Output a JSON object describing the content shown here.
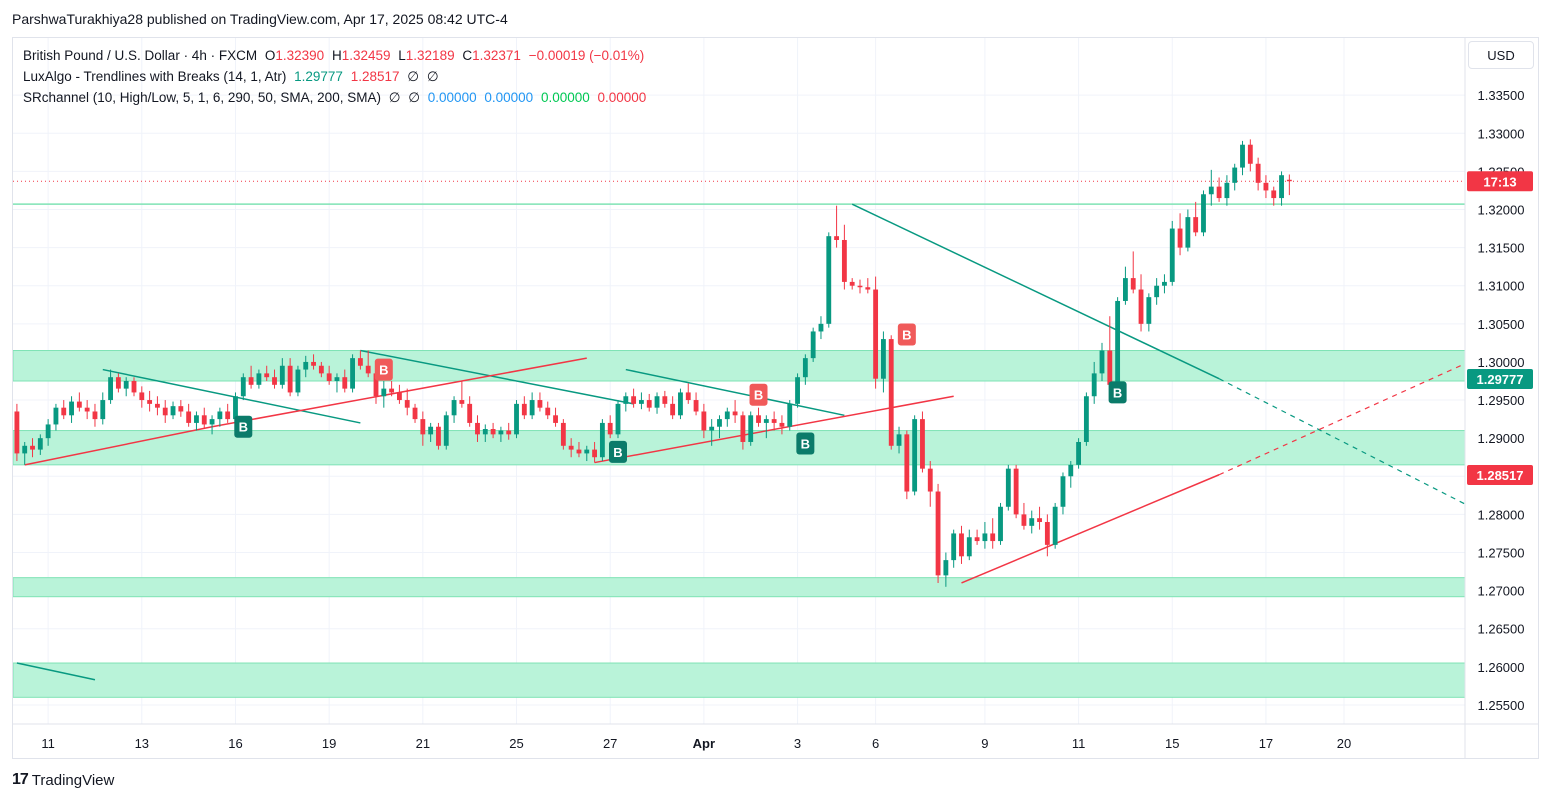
{
  "header": {
    "publisher": "ParshwaTurakhiya28 published on TradingView.com, Apr 17, 2025 08:42 UTC-4"
  },
  "legend": {
    "symbol": {
      "name": "British Pound / U.S. Dollar · 4h · FXCM",
      "o_label": "O",
      "o_value": "1.32390",
      "h_label": "H",
      "h_value": "1.32459",
      "l_label": "L",
      "l_value": "1.32189",
      "c_label": "C",
      "c_value": "1.32371",
      "change": "−0.00019 (−0.01%)"
    },
    "luxalgo": {
      "name": "LuxAlgo - Trendlines with Breaks (14, 1, Atr)",
      "v1": "1.29777",
      "v2": "1.28517",
      "v3": "∅",
      "v4": "∅"
    },
    "srchannel": {
      "name": "SRchannel (10, High/Low, 5, 1, 6, 290, 50, SMA, 200, SMA)",
      "v1": "∅",
      "v2": "∅",
      "v3": "0.00000",
      "v4": "0.00000",
      "v5": "0.00000",
      "v6": "0.00000"
    }
  },
  "currency_button": "USD",
  "footer": {
    "logo_mark": "17",
    "logo_text": "TradingView"
  },
  "colors": {
    "up": "#089981",
    "down": "#f23645",
    "zone": "#b9f3d9",
    "zone_border": "#7fe3b5",
    "trend_down": "#089981",
    "trend_up": "#f23645",
    "grid": "#f0f3fa"
  },
  "chart_data": {
    "type": "candlestick",
    "title": "British Pound / U.S. Dollar · 4h · FXCM",
    "y_axis": {
      "min": 1.2525,
      "max": 1.3425,
      "ticks": [
        "1.25500",
        "1.26000",
        "1.26500",
        "1.27000",
        "1.27500",
        "1.28000",
        "1.28500",
        "1.29000",
        "1.29500",
        "1.30000",
        "1.30500",
        "1.31000",
        "1.31500",
        "1.32000",
        "1.32500",
        "1.33000",
        "1.33500"
      ]
    },
    "x_axis": {
      "labels": [
        {
          "text": "11",
          "index": 4
        },
        {
          "text": "13",
          "index": 16
        },
        {
          "text": "16",
          "index": 28
        },
        {
          "text": "19",
          "index": 40
        },
        {
          "text": "21",
          "index": 52
        },
        {
          "text": "25",
          "index": 64
        },
        {
          "text": "27",
          "index": 76
        },
        {
          "text": "Apr",
          "index": 88
        },
        {
          "text": "3",
          "index": 100
        },
        {
          "text": "6",
          "index": 110
        },
        {
          "text": "9",
          "index": 124
        },
        {
          "text": "11",
          "index": 136
        },
        {
          "text": "15",
          "index": 148
        },
        {
          "text": "17",
          "index": 160
        },
        {
          "text": "20",
          "index": 170
        }
      ],
      "bold_labels": [
        "Apr"
      ],
      "total_slots": 186
    },
    "price_labels": [
      {
        "text": "17:13",
        "value": 1.3237,
        "color": "#f23645"
      },
      {
        "text": "1.29777",
        "value": 1.29777,
        "color": "#089981"
      },
      {
        "text": "1.28517",
        "value": 1.28517,
        "color": "#f23645"
      }
    ],
    "current_price": 1.3237,
    "sr_zones": [
      [
        1.2975,
        1.3015
      ],
      [
        1.2865,
        1.291
      ],
      [
        1.2692,
        1.2717
      ],
      [
        1.256,
        1.2605
      ]
    ],
    "horizontal_line": 1.3207,
    "candles": [
      [
        1.2935,
        1.2945,
        1.287,
        1.288
      ],
      [
        1.288,
        1.2895,
        1.2865,
        1.289
      ],
      [
        1.289,
        1.29,
        1.2875,
        1.2885
      ],
      [
        1.2885,
        1.2905,
        1.2878,
        1.29
      ],
      [
        1.29,
        1.2925,
        1.289,
        1.2918
      ],
      [
        1.2918,
        1.2945,
        1.291,
        1.294
      ],
      [
        1.294,
        1.295,
        1.2925,
        1.293
      ],
      [
        1.293,
        1.2955,
        1.292,
        1.2948
      ],
      [
        1.2948,
        1.296,
        1.2935,
        1.294
      ],
      [
        1.294,
        1.295,
        1.2925,
        1.2935
      ],
      [
        1.2935,
        1.2945,
        1.2915,
        1.2925
      ],
      [
        1.2925,
        1.296,
        1.2918,
        1.295
      ],
      [
        1.295,
        1.299,
        1.2945,
        1.298
      ],
      [
        1.298,
        1.2985,
        1.296,
        1.2965
      ],
      [
        1.2965,
        1.298,
        1.2955,
        1.2975
      ],
      [
        1.2975,
        1.298,
        1.2955,
        1.296
      ],
      [
        1.296,
        1.2968,
        1.294,
        1.295
      ],
      [
        1.295,
        1.2962,
        1.2935,
        1.2945
      ],
      [
        1.2945,
        1.2955,
        1.293,
        1.294
      ],
      [
        1.294,
        1.295,
        1.292,
        1.293
      ],
      [
        1.293,
        1.2948,
        1.2925,
        1.2942
      ],
      [
        1.2942,
        1.295,
        1.2928,
        1.2935
      ],
      [
        1.2935,
        1.2945,
        1.2915,
        1.292
      ],
      [
        1.292,
        1.2935,
        1.291,
        1.293
      ],
      [
        1.293,
        1.294,
        1.2912,
        1.2918
      ],
      [
        1.2918,
        1.293,
        1.2905,
        1.2925
      ],
      [
        1.2925,
        1.294,
        1.2915,
        1.2935
      ],
      [
        1.2935,
        1.2945,
        1.292,
        1.2925
      ],
      [
        1.2925,
        1.296,
        1.292,
        1.2955
      ],
      [
        1.2955,
        1.2985,
        1.295,
        1.298
      ],
      [
        1.298,
        1.2995,
        1.2965,
        1.297
      ],
      [
        1.297,
        1.299,
        1.2965,
        1.2985
      ],
      [
        1.2985,
        1.2995,
        1.2975,
        1.298
      ],
      [
        1.298,
        1.299,
        1.2965,
        1.297
      ],
      [
        1.297,
        1.3005,
        1.2965,
        1.2995
      ],
      [
        1.2995,
        1.3005,
        1.2955,
        1.296
      ],
      [
        1.296,
        1.2995,
        1.2955,
        1.299
      ],
      [
        1.299,
        1.3008,
        1.298,
        1.3
      ],
      [
        1.3,
        1.301,
        1.299,
        1.2995
      ],
      [
        1.2995,
        1.3,
        1.298,
        1.2985
      ],
      [
        1.2985,
        1.2995,
        1.297,
        1.2975
      ],
      [
        1.2975,
        1.2985,
        1.296,
        1.298
      ],
      [
        1.298,
        1.299,
        1.296,
        1.2965
      ],
      [
        1.2965,
        1.301,
        1.296,
        1.3005
      ],
      [
        1.3005,
        1.3015,
        1.299,
        1.2995
      ],
      [
        1.2995,
        1.3015,
        1.298,
        1.2985
      ],
      [
        1.2985,
        1.299,
        1.2945,
        1.2955
      ],
      [
        1.2955,
        1.2975,
        1.294,
        1.2965
      ],
      [
        1.2965,
        1.2975,
        1.2955,
        1.296
      ],
      [
        1.296,
        1.297,
        1.2945,
        1.295
      ],
      [
        1.295,
        1.2965,
        1.293,
        1.294
      ],
      [
        1.294,
        1.2945,
        1.292,
        1.2925
      ],
      [
        1.2925,
        1.2935,
        1.289,
        1.2905
      ],
      [
        1.2905,
        1.292,
        1.2895,
        1.2915
      ],
      [
        1.2915,
        1.292,
        1.2885,
        1.289
      ],
      [
        1.289,
        1.2935,
        1.2885,
        1.293
      ],
      [
        1.293,
        1.2955,
        1.292,
        1.295
      ],
      [
        1.295,
        1.2975,
        1.294,
        1.2945
      ],
      [
        1.2945,
        1.2955,
        1.2915,
        1.292
      ],
      [
        1.292,
        1.293,
        1.2895,
        1.2905
      ],
      [
        1.2905,
        1.2918,
        1.2895,
        1.2912
      ],
      [
        1.2912,
        1.292,
        1.29,
        1.2905
      ],
      [
        1.2905,
        1.2915,
        1.2895,
        1.291
      ],
      [
        1.291,
        1.292,
        1.2898,
        1.2905
      ],
      [
        1.2905,
        1.295,
        1.29,
        1.2945
      ],
      [
        1.2945,
        1.2955,
        1.2925,
        1.293
      ],
      [
        1.293,
        1.296,
        1.2925,
        1.295
      ],
      [
        1.295,
        1.296,
        1.2935,
        1.294
      ],
      [
        1.294,
        1.2948,
        1.2925,
        1.293
      ],
      [
        1.293,
        1.294,
        1.2915,
        1.292
      ],
      [
        1.292,
        1.2925,
        1.2885,
        1.289
      ],
      [
        1.289,
        1.29,
        1.2875,
        1.2885
      ],
      [
        1.2885,
        1.2895,
        1.2875,
        1.288
      ],
      [
        1.288,
        1.289,
        1.287,
        1.2885
      ],
      [
        1.2885,
        1.2895,
        1.2868,
        1.2875
      ],
      [
        1.2875,
        1.2925,
        1.287,
        1.292
      ],
      [
        1.292,
        1.293,
        1.29,
        1.2905
      ],
      [
        1.2905,
        1.295,
        1.29,
        1.2945
      ],
      [
        1.2945,
        1.296,
        1.2935,
        1.2955
      ],
      [
        1.2955,
        1.2965,
        1.294,
        1.2945
      ],
      [
        1.2945,
        1.296,
        1.2938,
        1.295
      ],
      [
        1.295,
        1.2958,
        1.2935,
        1.294
      ],
      [
        1.294,
        1.296,
        1.2932,
        1.2955
      ],
      [
        1.2955,
        1.2962,
        1.294,
        1.2945
      ],
      [
        1.2945,
        1.2955,
        1.2925,
        1.293
      ],
      [
        1.293,
        1.2965,
        1.2925,
        1.296
      ],
      [
        1.296,
        1.2972,
        1.2945,
        1.295
      ],
      [
        1.295,
        1.296,
        1.293,
        1.2935
      ],
      [
        1.2935,
        1.2945,
        1.29,
        1.291
      ],
      [
        1.291,
        1.2925,
        1.289,
        1.2915
      ],
      [
        1.2915,
        1.293,
        1.29,
        1.2925
      ],
      [
        1.2925,
        1.294,
        1.2915,
        1.2935
      ],
      [
        1.2935,
        1.295,
        1.292,
        1.293
      ],
      [
        1.293,
        1.2935,
        1.2885,
        1.2895
      ],
      [
        1.2895,
        1.2935,
        1.289,
        1.293
      ],
      [
        1.293,
        1.294,
        1.2915,
        1.292
      ],
      [
        1.292,
        1.293,
        1.29,
        1.2925
      ],
      [
        1.2925,
        1.2935,
        1.291,
        1.292
      ],
      [
        1.292,
        1.293,
        1.2905,
        1.2915
      ],
      [
        1.2915,
        1.295,
        1.291,
        1.2945
      ],
      [
        1.2945,
        1.2985,
        1.294,
        1.298
      ],
      [
        1.298,
        1.301,
        1.297,
        1.3005
      ],
      [
        1.3005,
        1.3045,
        1.3,
        1.304
      ],
      [
        1.304,
        1.306,
        1.303,
        1.305
      ],
      [
        1.305,
        1.317,
        1.3045,
        1.3165
      ],
      [
        1.3165,
        1.3205,
        1.315,
        1.316
      ],
      [
        1.316,
        1.318,
        1.3095,
        1.3105
      ],
      [
        1.3105,
        1.311,
        1.3095,
        1.31
      ],
      [
        1.31,
        1.3108,
        1.309,
        1.3098
      ],
      [
        1.3098,
        1.311,
        1.309,
        1.3095
      ],
      [
        1.3095,
        1.3112,
        1.2965,
        1.2978
      ],
      [
        1.2978,
        1.304,
        1.296,
        1.303
      ],
      [
        1.303,
        1.3035,
        1.2885,
        1.289
      ],
      [
        1.289,
        1.2915,
        1.288,
        1.2905
      ],
      [
        1.2905,
        1.291,
        1.282,
        1.283
      ],
      [
        1.283,
        1.293,
        1.2825,
        1.2925
      ],
      [
        1.2925,
        1.2935,
        1.2855,
        1.286
      ],
      [
        1.286,
        1.287,
        1.281,
        1.283
      ],
      [
        1.283,
        1.284,
        1.271,
        1.272
      ],
      [
        1.272,
        1.275,
        1.2705,
        1.274
      ],
      [
        1.274,
        1.278,
        1.273,
        1.2775
      ],
      [
        1.2775,
        1.2785,
        1.2735,
        1.2745
      ],
      [
        1.2745,
        1.278,
        1.274,
        1.277
      ],
      [
        1.277,
        1.278,
        1.276,
        1.2765
      ],
      [
        1.2765,
        1.279,
        1.2755,
        1.2775
      ],
      [
        1.2775,
        1.2795,
        1.2755,
        1.2765
      ],
      [
        1.2765,
        1.2815,
        1.276,
        1.281
      ],
      [
        1.281,
        1.2865,
        1.2805,
        1.286
      ],
      [
        1.286,
        1.2865,
        1.2795,
        1.28
      ],
      [
        1.28,
        1.2815,
        1.278,
        1.2785
      ],
      [
        1.2785,
        1.2805,
        1.2775,
        1.2795
      ],
      [
        1.2795,
        1.281,
        1.278,
        1.279
      ],
      [
        1.279,
        1.28,
        1.2745,
        1.276
      ],
      [
        1.276,
        1.2815,
        1.2755,
        1.281
      ],
      [
        1.281,
        1.2855,
        1.28,
        1.285
      ],
      [
        1.285,
        1.287,
        1.2835,
        1.2865
      ],
      [
        1.2865,
        1.29,
        1.286,
        1.2895
      ],
      [
        1.2895,
        1.296,
        1.289,
        1.2955
      ],
      [
        1.2955,
        1.3,
        1.2945,
        1.2985
      ],
      [
        1.2985,
        1.3025,
        1.2975,
        1.3015
      ],
      [
        1.3015,
        1.306,
        1.2965,
        1.297
      ],
      [
        1.297,
        1.3085,
        1.2965,
        1.308
      ],
      [
        1.308,
        1.3125,
        1.3075,
        1.311
      ],
      [
        1.311,
        1.3145,
        1.309,
        1.3095
      ],
      [
        1.3095,
        1.3115,
        1.304,
        1.305
      ],
      [
        1.305,
        1.309,
        1.304,
        1.3085
      ],
      [
        1.3085,
        1.311,
        1.3075,
        1.31
      ],
      [
        1.31,
        1.3115,
        1.309,
        1.3105
      ],
      [
        1.3105,
        1.3185,
        1.31,
        1.3175
      ],
      [
        1.3175,
        1.3195,
        1.314,
        1.315
      ],
      [
        1.315,
        1.32,
        1.3145,
        1.319
      ],
      [
        1.319,
        1.321,
        1.3165,
        1.317
      ],
      [
        1.317,
        1.3225,
        1.3165,
        1.322
      ],
      [
        1.322,
        1.3252,
        1.3205,
        1.323
      ],
      [
        1.323,
        1.3242,
        1.321,
        1.3215
      ],
      [
        1.3215,
        1.3245,
        1.3205,
        1.3235
      ],
      [
        1.3235,
        1.326,
        1.3225,
        1.3255
      ],
      [
        1.3255,
        1.329,
        1.3245,
        1.3285
      ],
      [
        1.3285,
        1.3292,
        1.325,
        1.326
      ],
      [
        1.326,
        1.3268,
        1.3225,
        1.3235
      ],
      [
        1.3235,
        1.3245,
        1.3215,
        1.3225
      ],
      [
        1.3225,
        1.323,
        1.3205,
        1.3215
      ],
      [
        1.3215,
        1.325,
        1.3205,
        1.3245
      ],
      [
        1.3239,
        1.32459,
        1.32189,
        1.32371
      ]
    ],
    "candle_start_slot": 0,
    "trendlines_down": [
      {
        "x1": 11,
        "y1": 1.299,
        "x2": 44,
        "y2": 1.292
      },
      {
        "x1": 44,
        "y1": 1.3015,
        "x2": 79,
        "y2": 1.2945
      },
      {
        "x1": 78,
        "y1": 1.299,
        "x2": 106,
        "y2": 1.293
      },
      {
        "x1": 107,
        "y1": 1.3207,
        "x2": 154,
        "y2": 1.2978
      },
      {
        "x1": 0,
        "y1": 1.2605,
        "x2": 10,
        "y2": 1.2583
      }
    ],
    "trendlines_down_ext": [
      {
        "x1": 154,
        "y1": 1.2978,
        "x2": 186,
        "y2": 1.2811
      }
    ],
    "trendlines_up": [
      {
        "x1": 1,
        "y1": 1.2865,
        "x2": 25,
        "y2": 1.2915
      },
      {
        "x1": 25,
        "y1": 1.2915,
        "x2": 73,
        "y2": 1.3005
      },
      {
        "x1": 74,
        "y1": 1.2868,
        "x2": 120,
        "y2": 1.2955
      },
      {
        "x1": 121,
        "y1": 1.271,
        "x2": 154,
        "y2": 1.2852
      }
    ],
    "trendlines_up_ext": [
      {
        "x1": 154,
        "y1": 1.2852,
        "x2": 186,
        "y2": 1.3
      }
    ],
    "break_markers": [
      {
        "text": "B",
        "slot": 29,
        "value": 1.2915,
        "kind": "up"
      },
      {
        "text": "B",
        "slot": 47,
        "value": 1.299,
        "kind": "down"
      },
      {
        "text": "B",
        "slot": 77,
        "value": 1.2882,
        "kind": "up"
      },
      {
        "text": "B",
        "slot": 95,
        "value": 1.2957,
        "kind": "down"
      },
      {
        "text": "B",
        "slot": 101,
        "value": 1.2893,
        "kind": "up"
      },
      {
        "text": "B",
        "slot": 114,
        "value": 1.3036,
        "kind": "down"
      },
      {
        "text": "B",
        "slot": 141,
        "value": 1.296,
        "kind": "up"
      }
    ]
  }
}
